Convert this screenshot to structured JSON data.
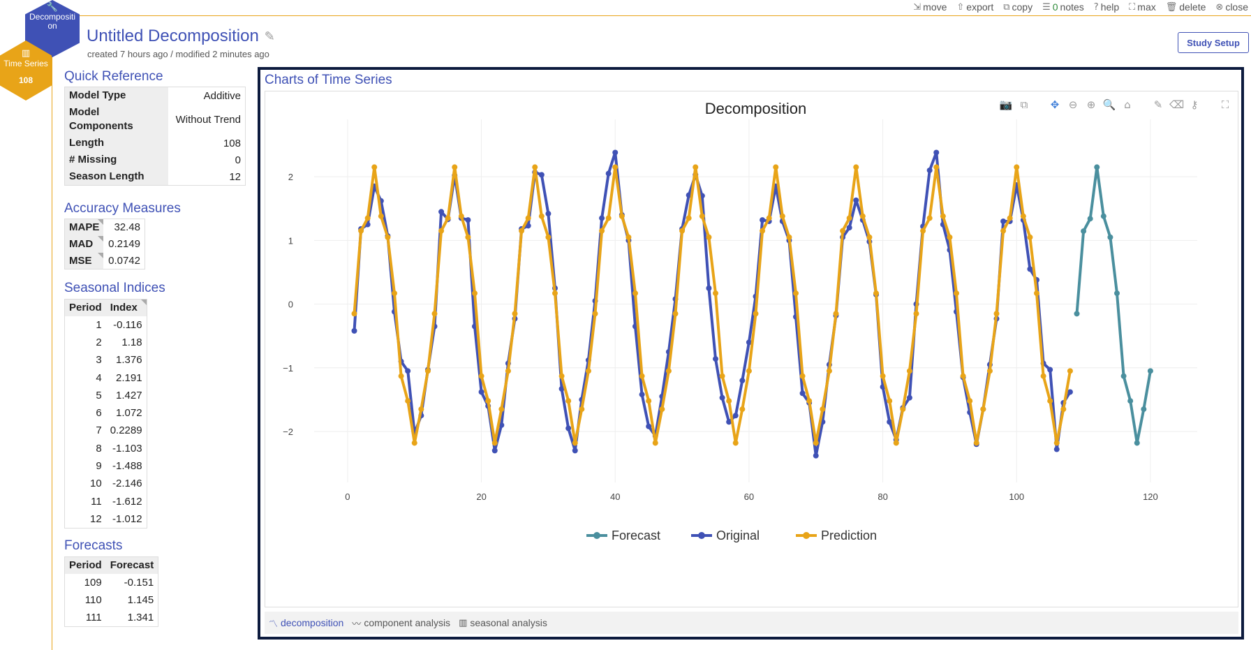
{
  "toolbar": {
    "move": "move",
    "export": "export",
    "copy": "copy",
    "notes_count": "0",
    "notes": "notes",
    "help": "help",
    "max": "max",
    "delete": "delete",
    "close": "close"
  },
  "badges": {
    "decomposition": "Decompositi on",
    "time_series": "Time Series",
    "time_series_count": "108"
  },
  "header": {
    "title": "Untitled Decomposition",
    "meta": "created 7 hours ago / modified 2 minutes ago",
    "study_setup": "Study Setup"
  },
  "quick_reference": {
    "title": "Quick Reference",
    "rows": [
      {
        "key": "Model Type",
        "value": "Additive"
      },
      {
        "key": "Model Components",
        "value": "Without Trend"
      },
      {
        "key": "Length",
        "value": "108"
      },
      {
        "key": "# Missing",
        "value": "0"
      },
      {
        "key": "Season Length",
        "value": "12"
      }
    ]
  },
  "accuracy": {
    "title": "Accuracy Measures",
    "rows": [
      {
        "key": "MAPE",
        "value": "32.48"
      },
      {
        "key": "MAD",
        "value": "0.2149"
      },
      {
        "key": "MSE",
        "value": "0.0742"
      }
    ]
  },
  "seasonal": {
    "title": "Seasonal Indices",
    "col_period": "Period",
    "col_index": "Index",
    "rows": [
      [
        "1",
        "-0.116"
      ],
      [
        "2",
        "1.18"
      ],
      [
        "3",
        "1.376"
      ],
      [
        "4",
        "2.191"
      ],
      [
        "5",
        "1.427"
      ],
      [
        "6",
        "1.072"
      ],
      [
        "7",
        "0.2289"
      ],
      [
        "8",
        "-1.103"
      ],
      [
        "9",
        "-1.488"
      ],
      [
        "10",
        "-2.146"
      ],
      [
        "11",
        "-1.612"
      ],
      [
        "12",
        "-1.012"
      ]
    ]
  },
  "forecasts": {
    "title": "Forecasts",
    "col_period": "Period",
    "col_forecast": "Forecast",
    "rows": [
      [
        "109",
        "-0.151"
      ],
      [
        "110",
        "1.145"
      ],
      [
        "111",
        "1.341"
      ]
    ]
  },
  "chart_panel": {
    "title": "Charts of Time Series",
    "tabs": [
      "decomposition",
      "component analysis",
      "seasonal analysis"
    ]
  },
  "chart_data": {
    "type": "line",
    "title": "Decomposition",
    "xlim": [
      -5,
      127
    ],
    "ylim": [
      -2.8,
      2.9
    ],
    "x_ticks": [
      0,
      20,
      40,
      60,
      80,
      100,
      120
    ],
    "y_ticks": [
      -2,
      -1,
      0,
      1,
      2
    ],
    "grid": true,
    "legend_position": "bottom",
    "colors": {
      "Forecast": "#4a8f9e",
      "Original": "#3f51b5",
      "Prediction": "#e8a418"
    },
    "series": [
      {
        "name": "Original",
        "x_start": 1,
        "values": [
          -0.42,
          1.18,
          1.25,
          1.85,
          1.62,
          1.07,
          -0.12,
          -0.9,
          -1.05,
          -2.03,
          -1.75,
          -1.03,
          -0.35,
          1.45,
          1.33,
          2.02,
          1.35,
          1.32,
          -0.35,
          -1.38,
          -1.6,
          -2.3,
          -1.9,
          -0.93,
          -0.23,
          1.18,
          1.23,
          2.07,
          2.03,
          1.42,
          0.25,
          -1.33,
          -1.95,
          -2.3,
          -1.5,
          -0.88,
          0.05,
          1.35,
          2.05,
          2.38,
          1.4,
          1.0,
          -0.35,
          -1.42,
          -1.92,
          -2.07,
          -1.45,
          -0.75,
          0.08,
          1.18,
          1.71,
          2.03,
          1.7,
          0.25,
          -0.86,
          -1.47,
          -1.85,
          -1.75,
          -1.2,
          -0.6,
          0.12,
          1.32,
          1.3,
          1.85,
          1.3,
          1.0,
          -0.2,
          -1.4,
          -1.55,
          -2.38,
          -1.85,
          -0.95,
          -0.18,
          1.05,
          1.2,
          1.63,
          1.32,
          0.98,
          0.15,
          -1.3,
          -1.85,
          -2.13,
          -1.63,
          -1.47,
          0.0,
          1.22,
          2.1,
          2.38,
          1.25,
          0.85,
          -0.12,
          -1.15,
          -1.7,
          -2.2,
          -1.65,
          -0.95,
          -0.23,
          1.3,
          1.3,
          1.87,
          1.32,
          0.55,
          0.38,
          -0.93,
          -1.03,
          -2.28,
          -1.55,
          -1.38
        ]
      },
      {
        "name": "Prediction",
        "x_start": 1,
        "values": [
          -0.15,
          1.15,
          1.35,
          2.15,
          1.38,
          1.05,
          0.17,
          -1.13,
          -1.52,
          -2.18,
          -1.65,
          -1.05,
          -0.15,
          1.15,
          1.35,
          2.15,
          1.38,
          1.05,
          0.17,
          -1.13,
          -1.52,
          -2.18,
          -1.65,
          -1.05,
          -0.15,
          1.15,
          1.35,
          2.15,
          1.38,
          1.05,
          0.17,
          -1.13,
          -1.52,
          -2.18,
          -1.65,
          -1.05,
          -0.15,
          1.15,
          1.35,
          2.15,
          1.38,
          1.05,
          0.17,
          -1.13,
          -1.52,
          -2.18,
          -1.65,
          -1.05,
          -0.15,
          1.15,
          1.35,
          2.15,
          1.38,
          1.05,
          0.17,
          -1.13,
          -1.52,
          -2.18,
          -1.65,
          -1.05,
          -0.15,
          1.15,
          1.35,
          2.15,
          1.38,
          1.05,
          0.17,
          -1.13,
          -1.52,
          -2.18,
          -1.65,
          -1.05,
          -0.15,
          1.15,
          1.35,
          2.15,
          1.38,
          1.05,
          0.17,
          -1.13,
          -1.52,
          -2.18,
          -1.65,
          -1.05,
          -0.15,
          1.15,
          1.35,
          2.15,
          1.38,
          1.05,
          0.17,
          -1.13,
          -1.52,
          -2.18,
          -1.65,
          -1.05,
          -0.15,
          1.15,
          1.35,
          2.15,
          1.38,
          1.05,
          0.17,
          -1.13,
          -1.52,
          -2.18,
          -1.65,
          -1.05
        ]
      },
      {
        "name": "Forecast",
        "x_start": 109,
        "values": [
          -0.151,
          1.145,
          1.341,
          2.15,
          1.38,
          1.05,
          0.17,
          -1.13,
          -1.52,
          -2.18,
          -1.65,
          -1.05
        ]
      }
    ]
  }
}
